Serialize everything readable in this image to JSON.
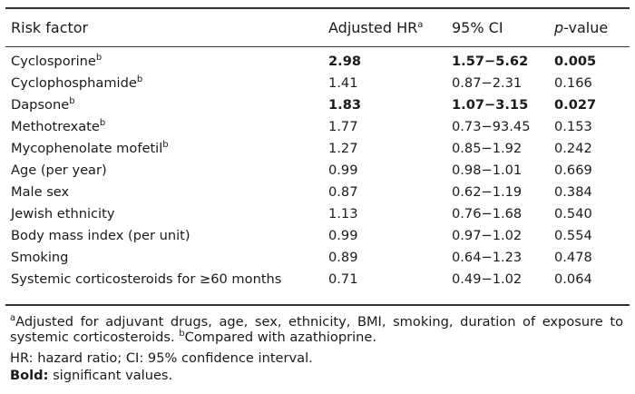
{
  "table": {
    "headers": {
      "risk_factor": "Risk factor",
      "hr": "Adjusted HR",
      "hr_sup": "a",
      "ci": "95% CI",
      "p_italic": "p",
      "p_rest": "-value"
    },
    "rows": [
      {
        "factor": "Cyclosporine",
        "sup": "b",
        "hr": "2.98",
        "ci": "1.57−5.62",
        "p": "0.005",
        "bold": true
      },
      {
        "factor": "Cyclophosphamide",
        "sup": "b",
        "hr": "1.41",
        "ci": "0.87−2.31",
        "p": "0.166",
        "bold": false
      },
      {
        "factor": "Dapsone",
        "sup": "b",
        "hr": "1.83",
        "ci": "1.07−3.15",
        "p": "0.027",
        "bold": true
      },
      {
        "factor": "Methotrexate",
        "sup": "b",
        "hr": "1.77",
        "ci": "0.73−93.45",
        "p": "0.153",
        "bold": false
      },
      {
        "factor": "Mycophenolate mofetil",
        "sup": "b",
        "hr": "1.27",
        "ci": "0.85−1.92",
        "p": "0.242",
        "bold": false
      },
      {
        "factor": "Age (per year)",
        "sup": "",
        "hr": "0.99",
        "ci": "0.98−1.01",
        "p": "0.669",
        "bold": false
      },
      {
        "factor": "Male sex",
        "sup": "",
        "hr": "0.87",
        "ci": "0.62−1.19",
        "p": "0.384",
        "bold": false
      },
      {
        "factor": "Jewish ethnicity",
        "sup": "",
        "hr": "1.13",
        "ci": "0.76−1.68",
        "p": "0.540",
        "bold": false
      },
      {
        "factor": "Body mass index (per unit)",
        "sup": "",
        "hr": "0.99",
        "ci": "0.97−1.02",
        "p": "0.554",
        "bold": false
      },
      {
        "factor": "Smoking",
        "sup": "",
        "hr": "0.89",
        "ci": "0.64−1.23",
        "p": "0.478",
        "bold": false
      },
      {
        "factor": "Systemic corticosteroids for ≥60 months",
        "sup": "",
        "hr": "0.71",
        "ci": "0.49−1.02",
        "p": "0.064",
        "bold": false
      }
    ]
  },
  "footnotes": {
    "a_marker": "a",
    "a_text": "Adjusted for adjuvant drugs, age, sex, ethnicity, BMI, smoking, duration of exposure to systemic corticosteroids. ",
    "b_marker": "b",
    "b_text": "Compared with azathioprine.",
    "abbreviations": "HR: hazard ratio; CI: 95% confidence interval.",
    "bold_label": "Bold:",
    "bold_text": " significant values."
  }
}
